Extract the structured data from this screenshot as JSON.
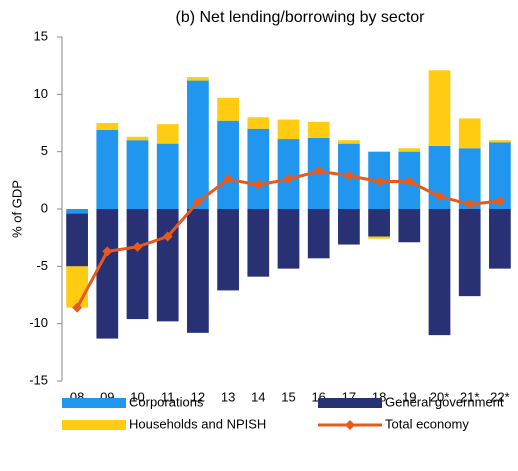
{
  "chart_data": {
    "type": "stacked_bar_line",
    "title": "(b) Net lending/borrowing by sector",
    "y_label": "% of GDP",
    "categories": [
      "08",
      "09",
      "10",
      "11",
      "12",
      "13",
      "14",
      "15",
      "16",
      "17",
      "18",
      "19",
      "20*",
      "21*",
      "22*"
    ],
    "series": [
      {
        "name": "Corporations",
        "color": "#2196ee",
        "kind": "bar",
        "values": [
          -0.4,
          6.9,
          6.0,
          5.7,
          11.2,
          7.7,
          7.0,
          6.1,
          6.2,
          5.7,
          5.0,
          5.0,
          5.5,
          5.3,
          5.8
        ]
      },
      {
        "name": "General government",
        "color": "#283174",
        "kind": "bar",
        "values": [
          -4.6,
          -11.3,
          -9.6,
          -9.8,
          -10.8,
          -7.1,
          -5.9,
          -5.2,
          -4.3,
          -3.1,
          -2.4,
          -2.9,
          -11.0,
          -7.6,
          -5.2
        ]
      },
      {
        "name": "Households and NPISH",
        "color": "#ffcc12",
        "kind": "bar",
        "values": [
          -3.6,
          0.6,
          0.3,
          1.7,
          0.3,
          2.0,
          1.0,
          1.7,
          1.4,
          0.3,
          -0.2,
          0.3,
          6.6,
          2.6,
          0.2
        ]
      },
      {
        "name": "Total economy",
        "color": "#e85a1c",
        "kind": "line",
        "values": [
          -8.6,
          -3.7,
          -3.3,
          -2.4,
          0.6,
          2.6,
          2.1,
          2.6,
          3.3,
          2.9,
          2.4,
          2.4,
          1.1,
          0.4,
          0.7
        ]
      }
    ],
    "ylim": [
      -15,
      15
    ],
    "yticks": [
      -15,
      -10,
      -5,
      0,
      5,
      10,
      15
    ]
  }
}
